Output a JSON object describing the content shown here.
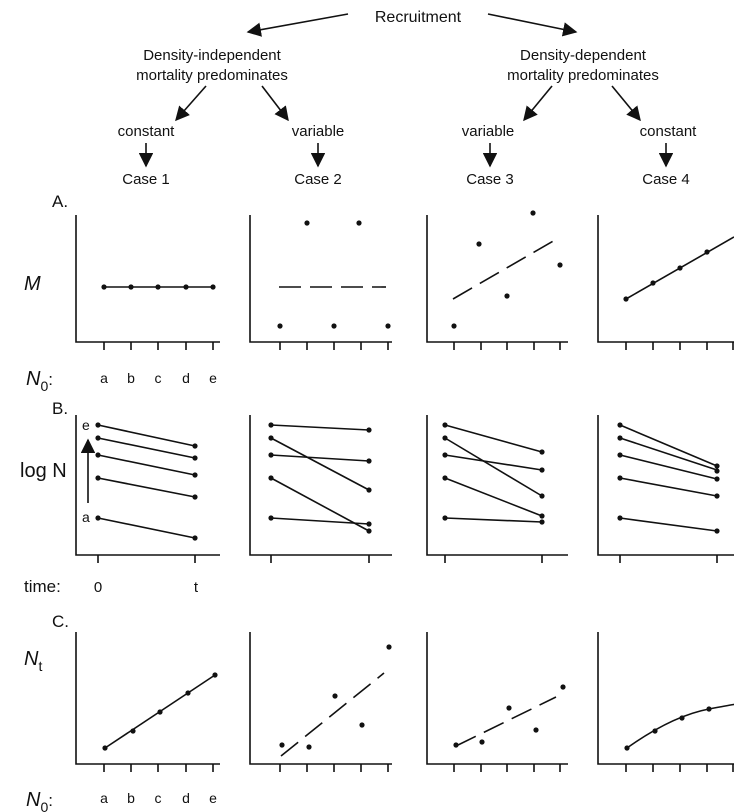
{
  "title": "Recruitment",
  "branches": [
    {
      "label_line1": "Density-independent",
      "label_line2": "mortality predominates"
    },
    {
      "label_line1": "Density-dependent",
      "label_line2": "mortality predominates"
    }
  ],
  "regimes": [
    "constant",
    "variable",
    "variable",
    "constant"
  ],
  "cases": [
    "Case 1",
    "Case 2",
    "Case 3",
    "Case 4"
  ],
  "rows": [
    {
      "letter": "A.",
      "ylabel": "M"
    },
    {
      "letter": "B.",
      "ylabel": "log N"
    },
    {
      "letter": "C.",
      "ylabel_main": "N",
      "ylabel_sub": "t"
    }
  ],
  "x_axis": {
    "label_main": "N",
    "label_sub": "0",
    "colon": ":",
    "ticks": [
      "a",
      "b",
      "c",
      "d",
      "e"
    ]
  },
  "time_axis": {
    "label": "time:",
    "start": "0",
    "end": "t"
  },
  "cohort_labels": {
    "top": "e",
    "bottom": "a"
  }
}
